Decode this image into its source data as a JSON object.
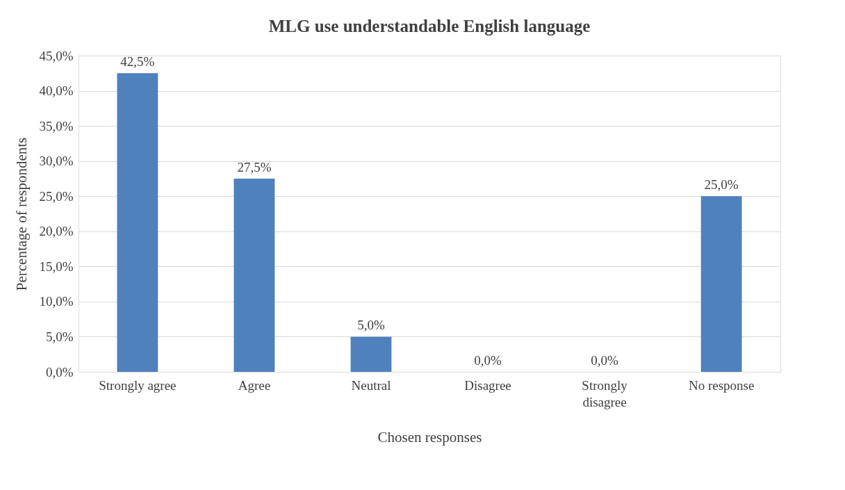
{
  "chart_data": {
    "type": "bar",
    "title": "MLG use understandable English language",
    "xlabel": "Chosen responses",
    "ylabel": "Percentage of respondents",
    "categories": [
      "Strongly agree",
      "Agree",
      "Neutral",
      "Disagree",
      "Strongly disagree",
      "No response"
    ],
    "values": [
      42.5,
      27.5,
      5.0,
      0.0,
      0.0,
      25.0
    ],
    "value_labels": [
      "42,5%",
      "27,5%",
      "5,0%",
      "0,0%",
      "0,0%",
      "25,0%"
    ],
    "color": "#4f81bd",
    "ylim": [
      0,
      45
    ],
    "yticks": [
      {
        "value": 0,
        "label": "0,0%"
      },
      {
        "value": 5,
        "label": "5,0%"
      },
      {
        "value": 10,
        "label": "10,0%"
      },
      {
        "value": 15,
        "label": "15,0%"
      },
      {
        "value": 20,
        "label": "20,0%"
      },
      {
        "value": 25,
        "label": "25,0%"
      },
      {
        "value": 30,
        "label": "30,0%"
      },
      {
        "value": 35,
        "label": "35,0%"
      },
      {
        "value": 40,
        "label": "40,0%"
      },
      {
        "value": 45,
        "label": "45,0%"
      }
    ],
    "grid": "y"
  }
}
